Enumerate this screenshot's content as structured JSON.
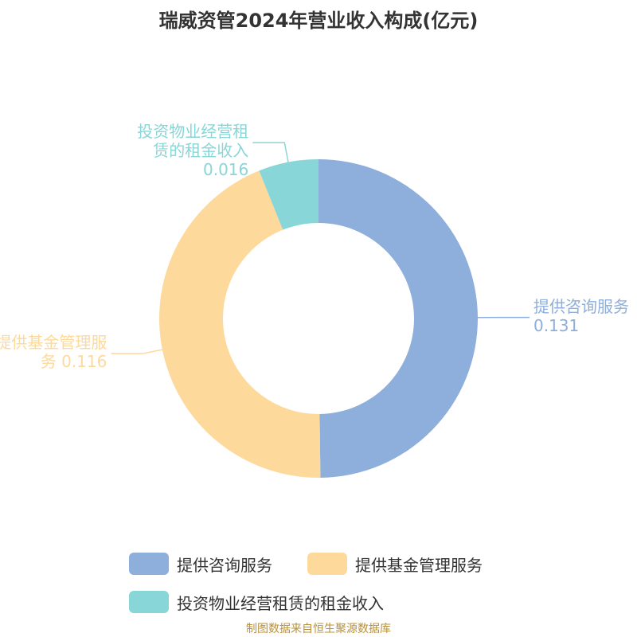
{
  "chart_data": {
    "type": "donut",
    "title": "瑞威资管2024年营业收入构成(亿元)",
    "categories": [
      "提供咨询服务",
      "提供基金管理服务",
      "投资物业经营租赁的租金收入"
    ],
    "values": [
      0.131,
      0.116,
      0.016
    ],
    "colors": [
      "#8eaedb",
      "#fdd99b",
      "#88d6d8"
    ],
    "legend": "bottom",
    "source": "制图数据来自恒生聚源数据库"
  }
}
